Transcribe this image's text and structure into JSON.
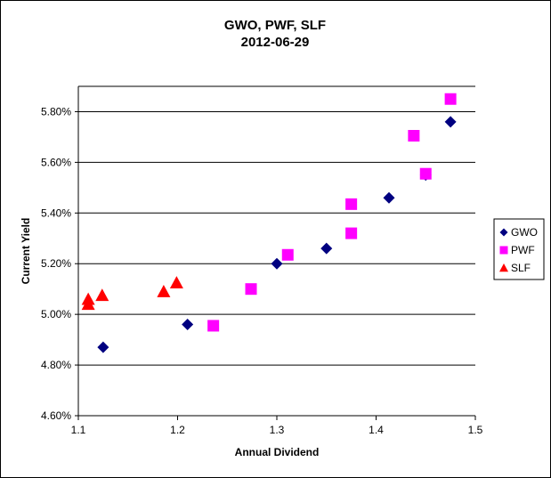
{
  "chart_data": {
    "type": "scatter",
    "title": "GWO, PWF, SLF",
    "subtitle": "2012-06-29",
    "xlabel": "Annual Dividend",
    "ylabel": "Current Yield",
    "xlim": [
      1.1,
      1.5
    ],
    "ylim": [
      4.6,
      5.9
    ],
    "xticks": [
      1.1,
      1.2,
      1.3,
      1.4,
      1.5
    ],
    "xtick_labels": [
      "1.1",
      "1.2",
      "1.3",
      "1.4",
      "1.5"
    ],
    "yticks": [
      4.6,
      4.8,
      5.0,
      5.2,
      5.4,
      5.6,
      5.8
    ],
    "ytick_labels": [
      "4.60%",
      "4.80%",
      "5.00%",
      "5.20%",
      "5.40%",
      "5.60%",
      "5.80%"
    ],
    "grid": "horizontal",
    "legend_position": "right",
    "series": [
      {
        "name": "GWO",
        "marker": "diamond",
        "color": "#000080",
        "points": [
          {
            "x": 1.125,
            "y": 4.87
          },
          {
            "x": 1.21,
            "y": 4.96
          },
          {
            "x": 1.3,
            "y": 5.2
          },
          {
            "x": 1.35,
            "y": 5.26
          },
          {
            "x": 1.413,
            "y": 5.46
          },
          {
            "x": 1.45,
            "y": 5.55
          },
          {
            "x": 1.475,
            "y": 5.76
          }
        ]
      },
      {
        "name": "PWF",
        "marker": "square",
        "color": "#FF00FF",
        "points": [
          {
            "x": 1.236,
            "y": 4.955
          },
          {
            "x": 1.274,
            "y": 5.1
          },
          {
            "x": 1.311,
            "y": 5.235
          },
          {
            "x": 1.375,
            "y": 5.32
          },
          {
            "x": 1.375,
            "y": 5.435
          },
          {
            "x": 1.438,
            "y": 5.705
          },
          {
            "x": 1.45,
            "y": 5.555
          },
          {
            "x": 1.475,
            "y": 5.85
          }
        ]
      },
      {
        "name": "SLF",
        "marker": "triangle",
        "color": "#FF0000",
        "points": [
          {
            "x": 1.11,
            "y": 5.04
          },
          {
            "x": 1.11,
            "y": 5.06
          },
          {
            "x": 1.124,
            "y": 5.075
          },
          {
            "x": 1.186,
            "y": 5.09
          },
          {
            "x": 1.199,
            "y": 5.125
          }
        ]
      }
    ]
  }
}
